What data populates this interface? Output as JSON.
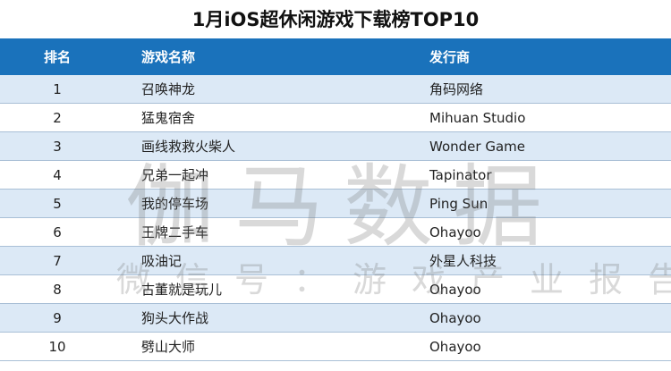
{
  "title": "1月iOS超休闲游戏下载榜TOP10",
  "columns": [
    "排名",
    "游戏名称",
    "发行商"
  ],
  "rows": [
    [
      "1",
      "召唤神龙",
      "角码网络"
    ],
    [
      "2",
      "猛鬼宿舍",
      "Mihuan Studio"
    ],
    [
      "3",
      "画线救救火柴人",
      "Wonder Game"
    ],
    [
      "4",
      "兄弟一起冲",
      "Tapinator"
    ],
    [
      "5",
      "我的停车场",
      "Ping Sun"
    ],
    [
      "6",
      "王牌二手车",
      "Ohayoo"
    ],
    [
      "7",
      "吸油记",
      "外星人科技"
    ],
    [
      "8",
      "古董就是玩儿",
      "Ohayoo"
    ],
    [
      "9",
      "狗头大作战",
      "Ohayoo"
    ],
    [
      "10",
      "劈山大师",
      "Ohayoo"
    ]
  ],
  "watermark": {
    "main": "伽马数据",
    "sub": "微信号：游戏产业报告"
  },
  "colors": {
    "header": "#1a72bb",
    "row_alt": "#dce9f6"
  }
}
